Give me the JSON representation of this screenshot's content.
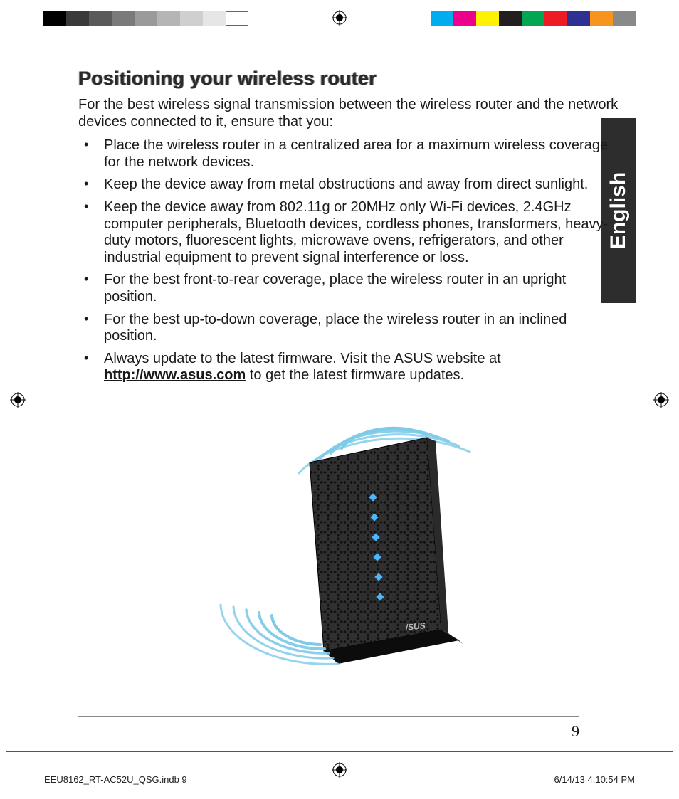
{
  "colorbars": {
    "left": [
      "#000000",
      "#3a3a3a",
      "#5a5a5a",
      "#7a7a7a",
      "#9a9a9a",
      "#b5b5b5",
      "#cfcfcf",
      "#e6e6e6",
      "#ffffff"
    ],
    "right": [
      "#00aeef",
      "#ec008c",
      "#fff200",
      "#231f20",
      "#00a651",
      "#ed1c24",
      "#2e3192",
      "#f7941d",
      "#898989"
    ]
  },
  "heading": "Positioning your wireless router",
  "intro": "For the best wireless signal transmission between the wireless router and the network devices connected to it, ensure that you:",
  "bullets": [
    "Place the wireless router in a centralized area for a maximum wireless coverage for the network devices.",
    "Keep the device away from metal obstructions and away from direct sunlight.",
    "Keep the device away from 802.11g or 20MHz only Wi-Fi devices, 2.4GHz computer peripherals, Bluetooth devices, cordless phones, transformers, heavy-duty motors, fluorescent lights, microwave ovens, refrigerators, and other industrial equipment to prevent signal interference or loss.",
    "For the best front-to-rear coverage, place the wireless router in an upright position.",
    "For the best up-to-down coverage, place the wireless router in an inclined position.",
    "Always update to the latest firmware. Visit the ASUS website at "
  ],
  "firmware_link": "http://www.asus.com",
  "firmware_tail": " to get the latest firmware updates.",
  "lang_tab": "English",
  "page_number": "9",
  "slug_left": "EEU8162_RT-AC52U_QSG.indb   9",
  "slug_right": "6/14/13   4:10:54 PM",
  "figure": {
    "wave_color": "#7ecbe8",
    "router_body": "#1a1a1a",
    "router_pattern": "#3a3a3a",
    "led_color": "#4ab7ff"
  }
}
